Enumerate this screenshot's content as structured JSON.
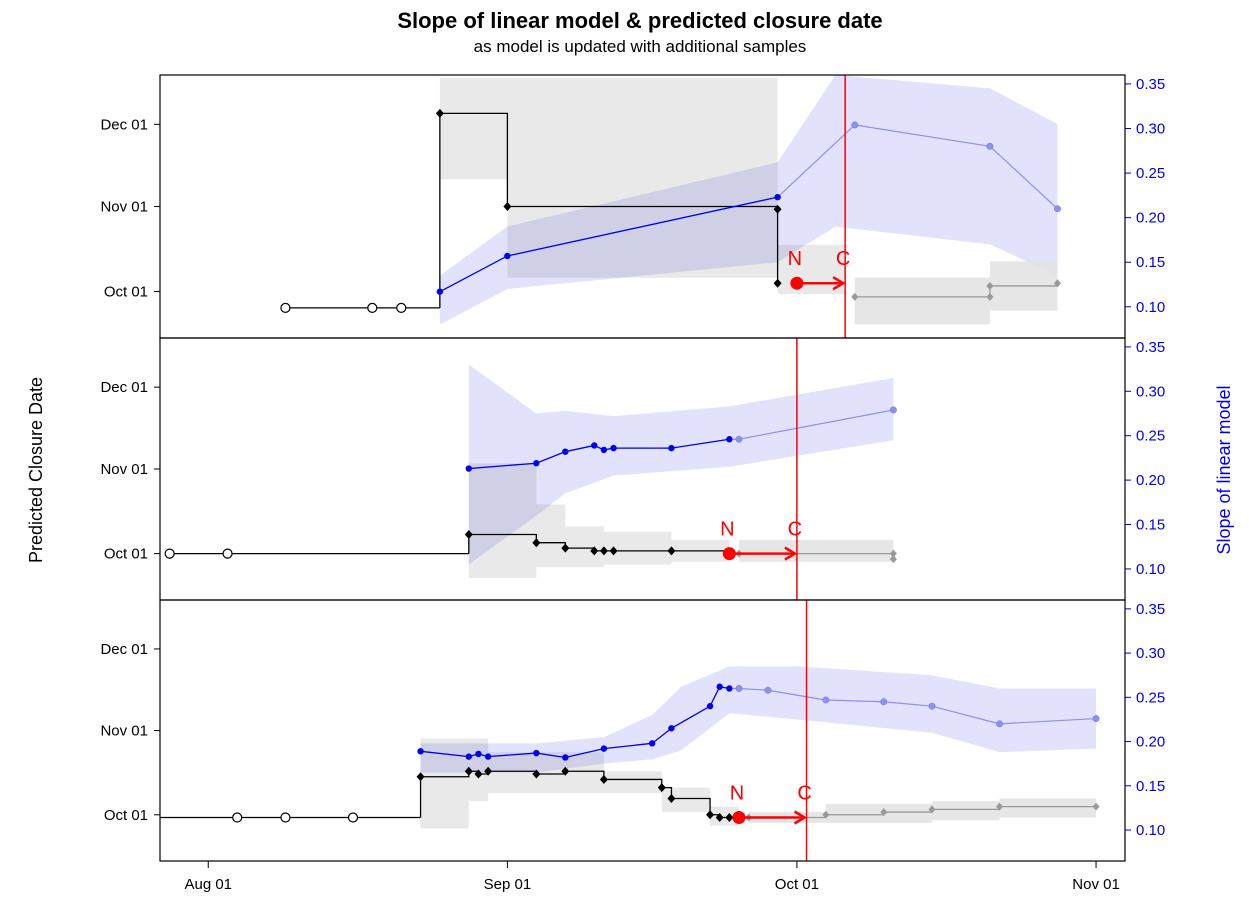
{
  "title": "Slope of linear model & predicted closure date",
  "subtitle": "as model is updated with additional samples",
  "colors": {
    "date_series": "#000000",
    "date_projection": "#999999",
    "date_band": "#e3e3e3",
    "slope_series": "#0000ee",
    "slope_projection": "#8f8fee",
    "slope_band": "#ddddfb",
    "marker": "#ff0000"
  },
  "chart_data": {
    "type": "line",
    "ylabel_left": "Predicted Closure Date",
    "ylabel_right": "Slope of linear model",
    "x_ticks": [
      "Aug 01",
      "Sep 01",
      "Oct 01",
      "Nov 01"
    ],
    "x_tick_dates": [
      "2000-08-01",
      "2000-09-01",
      "2000-10-01",
      "2000-11-01"
    ],
    "y_left_ticks": [
      "Oct 01",
      "Nov 01",
      "Dec 01"
    ],
    "y_left_tick_dates": [
      "2000-10-01",
      "2000-11-01",
      "2000-12-01"
    ],
    "y_right_ticks": [
      "0.10",
      "0.15",
      "0.20",
      "0.25",
      "0.30",
      "0.35"
    ],
    "y_right_range": [
      0.065,
      0.36
    ],
    "x_range": [
      "2000-07-27",
      "2000-11-04"
    ],
    "y_left_range": [
      "2000-09-14",
      "2000-12-19"
    ],
    "marker_labels": {
      "now": "N",
      "closure": "C"
    },
    "panels": [
      {
        "empty_samples": [
          {
            "x": "2000-08-09",
            "y": "2000-09-25"
          },
          {
            "x": "2000-08-18",
            "y": "2000-09-25"
          },
          {
            "x": "2000-08-21",
            "y": "2000-09-25"
          }
        ],
        "empty_line": [
          {
            "x": "2000-08-09",
            "y": "2000-09-25"
          },
          {
            "x": "2000-08-25",
            "y": "2000-09-25"
          }
        ],
        "date_points": [
          {
            "x": "2000-08-25",
            "y": "2000-12-05"
          },
          {
            "x": "2000-09-01",
            "y": "2000-11-01"
          },
          {
            "x": "2000-09-29",
            "y": "2000-10-31"
          },
          {
            "x": "2000-09-29",
            "y": "2000-10-04"
          }
        ],
        "date_band": [
          {
            "x1": "2000-08-25",
            "x2": "2000-09-01",
            "lo": "2000-11-11",
            "hi": "2000-12-18"
          },
          {
            "x1": "2000-09-01",
            "x2": "2000-09-29",
            "lo": "2000-10-06",
            "hi": "2000-12-18"
          },
          {
            "x1": "2000-09-29",
            "x2": "2000-10-06",
            "lo": "2000-09-30",
            "hi": "2000-10-18"
          }
        ],
        "date_projection": [
          {
            "x": "2000-10-07",
            "y": "2000-09-29"
          },
          {
            "x": "2000-10-21",
            "y": "2000-09-29"
          },
          {
            "x": "2000-10-21",
            "y": "2000-10-03"
          },
          {
            "x": "2000-10-28",
            "y": "2000-10-04"
          }
        ],
        "date_projection_band": [
          {
            "x1": "2000-10-07",
            "x2": "2000-10-21",
            "lo": "2000-09-19",
            "hi": "2000-10-06"
          },
          {
            "x1": "2000-10-21",
            "x2": "2000-10-28",
            "lo": "2000-09-24",
            "hi": "2000-10-12"
          }
        ],
        "slope_points": [
          {
            "x": "2000-08-25",
            "y": 0.117
          },
          {
            "x": "2000-09-01",
            "y": 0.157
          },
          {
            "x": "2000-09-29",
            "y": 0.223
          }
        ],
        "slope_projection": [
          {
            "x": "2000-10-07",
            "y": 0.304
          },
          {
            "x": "2000-10-21",
            "y": 0.28
          },
          {
            "x": "2000-10-28",
            "y": 0.21
          }
        ],
        "slope_band": [
          {
            "x": "2000-08-25",
            "lo": 0.08,
            "hi": 0.135
          },
          {
            "x": "2000-09-01",
            "lo": 0.12,
            "hi": 0.19
          },
          {
            "x": "2000-09-29",
            "lo": 0.15,
            "hi": 0.262
          },
          {
            "x": "2000-10-05",
            "lo": 0.19,
            "hi": 0.36
          },
          {
            "x": "2000-10-21",
            "lo": 0.17,
            "hi": 0.345
          },
          {
            "x": "2000-10-28",
            "lo": 0.135,
            "hi": 0.305
          }
        ],
        "now": {
          "x": "2000-10-01",
          "y": "2000-10-04"
        },
        "closure_x": "2000-10-06"
      },
      {
        "empty_samples": [
          {
            "x": "2000-07-28",
            "y": "2000-10-01"
          },
          {
            "x": "2000-08-03",
            "y": "2000-10-01"
          }
        ],
        "empty_line": [
          {
            "x": "2000-07-28",
            "y": "2000-10-01"
          },
          {
            "x": "2000-08-28",
            "y": "2000-10-01"
          }
        ],
        "date_points": [
          {
            "x": "2000-08-28",
            "y": "2000-10-08"
          },
          {
            "x": "2000-09-04",
            "y": "2000-10-05"
          },
          {
            "x": "2000-09-07",
            "y": "2000-10-03"
          },
          {
            "x": "2000-09-10",
            "y": "2000-10-02"
          },
          {
            "x": "2000-09-11",
            "y": "2000-10-02"
          },
          {
            "x": "2000-09-12",
            "y": "2000-10-02"
          },
          {
            "x": "2000-09-18",
            "y": "2000-10-02"
          },
          {
            "x": "2000-09-24",
            "y": "2000-10-01"
          }
        ],
        "date_band": [
          {
            "x1": "2000-08-28",
            "x2": "2000-09-04",
            "lo": "2000-09-22",
            "hi": "2000-11-03"
          },
          {
            "x1": "2000-09-04",
            "x2": "2000-09-07",
            "lo": "2000-09-26",
            "hi": "2000-10-19"
          },
          {
            "x1": "2000-09-07",
            "x2": "2000-09-11",
            "lo": "2000-09-26",
            "hi": "2000-10-11"
          },
          {
            "x1": "2000-09-11",
            "x2": "2000-09-18",
            "lo": "2000-09-27",
            "hi": "2000-10-09"
          },
          {
            "x1": "2000-09-18",
            "x2": "2000-09-24",
            "lo": "2000-09-28",
            "hi": "2000-10-06"
          }
        ],
        "date_projection": [
          {
            "x": "2000-09-25",
            "y": "2000-10-01"
          },
          {
            "x": "2000-10-11",
            "y": "2000-10-01"
          },
          {
            "x": "2000-10-11",
            "y": "2000-09-29"
          }
        ],
        "date_projection_band": [
          {
            "x1": "2000-09-25",
            "x2": "2000-10-11",
            "lo": "2000-09-28",
            "hi": "2000-10-06"
          }
        ],
        "slope_points": [
          {
            "x": "2000-08-28",
            "y": 0.213
          },
          {
            "x": "2000-09-04",
            "y": 0.219
          },
          {
            "x": "2000-09-07",
            "y": 0.232
          },
          {
            "x": "2000-09-10",
            "y": 0.239
          },
          {
            "x": "2000-09-11",
            "y": 0.234
          },
          {
            "x": "2000-09-12",
            "y": 0.236
          },
          {
            "x": "2000-09-18",
            "y": 0.236
          },
          {
            "x": "2000-09-24",
            "y": 0.246
          }
        ],
        "slope_projection": [
          {
            "x": "2000-09-25",
            "y": 0.246
          },
          {
            "x": "2000-10-11",
            "y": 0.279
          }
        ],
        "slope_band": [
          {
            "x": "2000-08-28",
            "lo": 0.105,
            "hi": 0.33
          },
          {
            "x": "2000-09-04",
            "lo": 0.16,
            "hi": 0.275
          },
          {
            "x": "2000-09-07",
            "lo": 0.185,
            "hi": 0.278
          },
          {
            "x": "2000-09-12",
            "lo": 0.205,
            "hi": 0.272
          },
          {
            "x": "2000-09-24",
            "lo": 0.215,
            "hi": 0.283
          },
          {
            "x": "2000-10-11",
            "lo": 0.245,
            "hi": 0.315
          }
        ],
        "now": {
          "x": "2000-09-24",
          "y": "2000-10-01"
        },
        "closure_x": "2000-10-01"
      },
      {
        "empty_samples": [
          {
            "x": "2000-08-04",
            "y": "2000-09-30"
          },
          {
            "x": "2000-08-09",
            "y": "2000-09-30"
          },
          {
            "x": "2000-08-16",
            "y": "2000-09-30"
          }
        ],
        "empty_line": [
          {
            "x": "2000-07-27",
            "y": "2000-09-30"
          },
          {
            "x": "2000-08-23",
            "y": "2000-09-30"
          }
        ],
        "date_points": [
          {
            "x": "2000-08-23",
            "y": "2000-10-15"
          },
          {
            "x": "2000-08-28",
            "y": "2000-10-17"
          },
          {
            "x": "2000-08-29",
            "y": "2000-10-16"
          },
          {
            "x": "2000-08-30",
            "y": "2000-10-17"
          },
          {
            "x": "2000-09-04",
            "y": "2000-10-16"
          },
          {
            "x": "2000-09-07",
            "y": "2000-10-17"
          },
          {
            "x": "2000-09-11",
            "y": "2000-10-14"
          },
          {
            "x": "2000-09-17",
            "y": "2000-10-11"
          },
          {
            "x": "2000-09-18",
            "y": "2000-10-07"
          },
          {
            "x": "2000-09-22",
            "y": "2000-10-01"
          },
          {
            "x": "2000-09-23",
            "y": "2000-09-30"
          },
          {
            "x": "2000-09-24",
            "y": "2000-09-30"
          }
        ],
        "date_band": [
          {
            "x1": "2000-08-23",
            "x2": "2000-08-28",
            "lo": "2000-09-26",
            "hi": "2000-10-29"
          },
          {
            "x1": "2000-08-28",
            "x2": "2000-08-30",
            "lo": "2000-10-06",
            "hi": "2000-10-29"
          },
          {
            "x1": "2000-08-30",
            "x2": "2000-09-11",
            "lo": "2000-10-09",
            "hi": "2000-10-24"
          },
          {
            "x1": "2000-09-11",
            "x2": "2000-09-17",
            "lo": "2000-10-09",
            "hi": "2000-10-17"
          },
          {
            "x1": "2000-09-17",
            "x2": "2000-09-22",
            "lo": "2000-10-02",
            "hi": "2000-10-11"
          },
          {
            "x1": "2000-09-22",
            "x2": "2000-09-25",
            "lo": "2000-09-27",
            "hi": "2000-10-04"
          }
        ],
        "date_projection": [
          {
            "x": "2000-09-26",
            "y": "2000-09-30"
          },
          {
            "x": "2000-10-04",
            "y": "2000-10-01"
          },
          {
            "x": "2000-10-10",
            "y": "2000-10-02"
          },
          {
            "x": "2000-10-15",
            "y": "2000-10-03"
          },
          {
            "x": "2000-10-22",
            "y": "2000-10-04"
          },
          {
            "x": "2000-11-01",
            "y": "2000-10-04"
          }
        ],
        "date_projection_band": [
          {
            "x1": "2000-09-26",
            "x2": "2000-10-04",
            "lo": "2000-09-28",
            "hi": "2000-10-02"
          },
          {
            "x1": "2000-10-04",
            "x2": "2000-10-15",
            "lo": "2000-09-28",
            "hi": "2000-10-05"
          },
          {
            "x1": "2000-10-15",
            "x2": "2000-10-22",
            "lo": "2000-09-29",
            "hi": "2000-10-06"
          },
          {
            "x1": "2000-10-22",
            "x2": "2000-11-01",
            "lo": "2000-09-30",
            "hi": "2000-10-07"
          }
        ],
        "slope_points": [
          {
            "x": "2000-08-23",
            "y": 0.189
          },
          {
            "x": "2000-08-28",
            "y": 0.183
          },
          {
            "x": "2000-08-29",
            "y": 0.186
          },
          {
            "x": "2000-08-30",
            "y": 0.183
          },
          {
            "x": "2000-09-04",
            "y": 0.187
          },
          {
            "x": "2000-09-07",
            "y": 0.182
          },
          {
            "x": "2000-09-11",
            "y": 0.192
          },
          {
            "x": "2000-09-16",
            "y": 0.198
          },
          {
            "x": "2000-09-18",
            "y": 0.215
          },
          {
            "x": "2000-09-22",
            "y": 0.24
          },
          {
            "x": "2000-09-23",
            "y": 0.262
          },
          {
            "x": "2000-09-24",
            "y": 0.26
          }
        ],
        "slope_projection": [
          {
            "x": "2000-09-25",
            "y": 0.26
          },
          {
            "x": "2000-09-28",
            "y": 0.258
          },
          {
            "x": "2000-10-04",
            "y": 0.247
          },
          {
            "x": "2000-10-10",
            "y": 0.245
          },
          {
            "x": "2000-10-15",
            "y": 0.24
          },
          {
            "x": "2000-10-22",
            "y": 0.22
          },
          {
            "x": "2000-11-01",
            "y": 0.226
          }
        ],
        "slope_band": [
          {
            "x": "2000-08-23",
            "lo": 0.165,
            "hi": 0.198
          },
          {
            "x": "2000-09-04",
            "lo": 0.165,
            "hi": 0.198
          },
          {
            "x": "2000-09-11",
            "lo": 0.175,
            "hi": 0.205
          },
          {
            "x": "2000-09-16",
            "lo": 0.18,
            "hi": 0.23
          },
          {
            "x": "2000-09-19",
            "lo": 0.19,
            "hi": 0.262
          },
          {
            "x": "2000-09-24",
            "lo": 0.232,
            "hi": 0.285
          },
          {
            "x": "2000-10-01",
            "lo": 0.225,
            "hi": 0.285
          },
          {
            "x": "2000-10-15",
            "lo": 0.21,
            "hi": 0.275
          },
          {
            "x": "2000-10-22",
            "lo": 0.188,
            "hi": 0.26
          },
          {
            "x": "2000-11-01",
            "lo": 0.192,
            "hi": 0.26
          }
        ],
        "now": {
          "x": "2000-09-25",
          "y": "2000-09-30"
        },
        "closure_x": "2000-10-02"
      }
    ]
  }
}
